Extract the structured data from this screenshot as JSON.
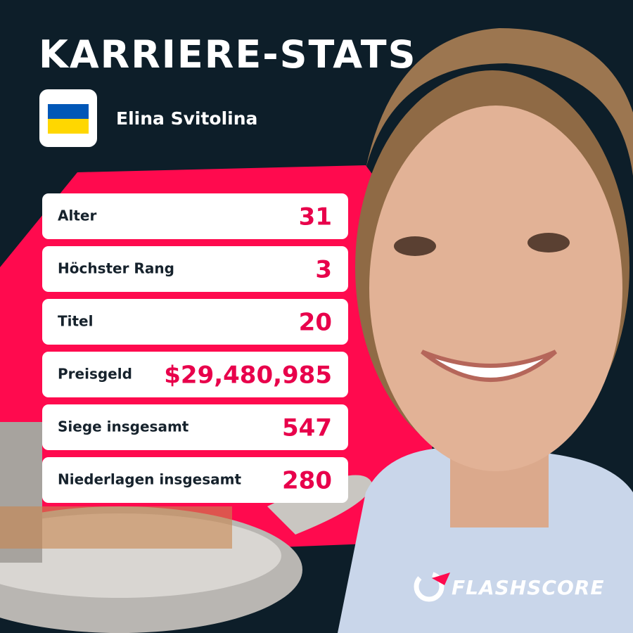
{
  "header": {
    "title": "KARRIERE-STATS"
  },
  "player": {
    "name": "Elina Svitolina"
  },
  "stats": [
    {
      "label": "Alter",
      "value": "31"
    },
    {
      "label": "Höchster Rang",
      "value": "3"
    },
    {
      "label": "Titel",
      "value": "20"
    },
    {
      "label": "Preisgeld",
      "value": "$29,480,985"
    },
    {
      "label": "Siege insgesamt",
      "value": "547"
    },
    {
      "label": "Niederlagen insgesamt",
      "value": "280"
    }
  ],
  "brand": {
    "name": "FLASHSCORE"
  }
}
